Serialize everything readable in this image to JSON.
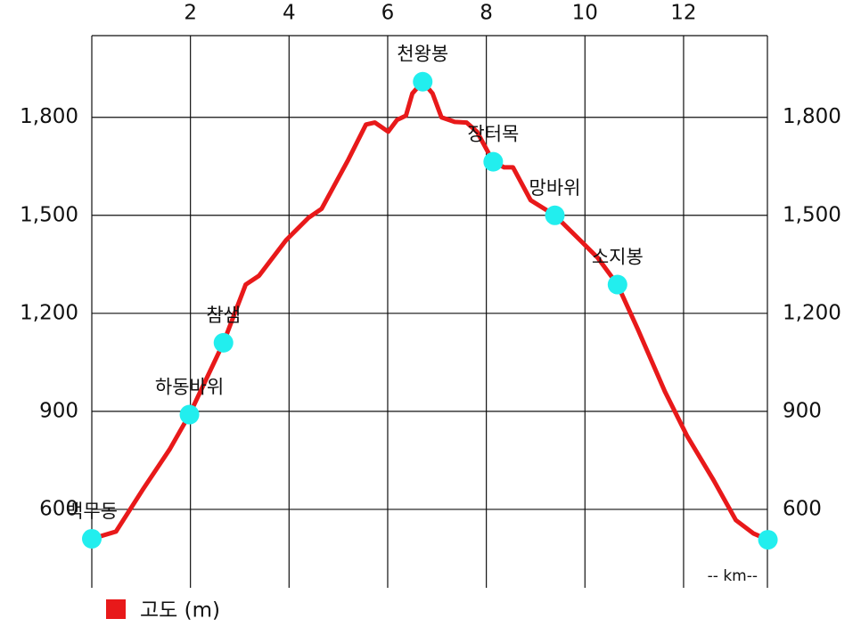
{
  "chart_data": {
    "type": "line",
    "x": [
      0,
      0.49,
      1.04,
      1.58,
      1.98,
      2.67,
      3.12,
      3.39,
      3.94,
      4.39,
      4.66,
      5.2,
      5.56,
      5.74,
      6.01,
      6.19,
      6.37,
      6.5,
      6.71,
      6.91,
      7.09,
      7.36,
      7.6,
      7.81,
      8.14,
      8.36,
      8.54,
      8.9,
      9.39,
      9.9,
      10.26,
      10.66,
      11.07,
      11.62,
      12.07,
      12.61,
      13.06,
      13.42,
      13.71
    ],
    "series": [
      {
        "name": "고도 (m)",
        "color": "#e8191a",
        "values": [
          510,
          532,
          662,
          784,
          890,
          1110,
          1288,
          1315,
          1424,
          1492,
          1520,
          1670,
          1778,
          1784,
          1756,
          1792,
          1805,
          1873,
          1909,
          1873,
          1800,
          1786,
          1784,
          1756,
          1664,
          1647,
          1647,
          1546,
          1500,
          1424,
          1370,
          1288,
          1152,
          961,
          825,
          689,
          567,
          526,
          507
        ]
      }
    ],
    "waypoints": {
      "color": "#22eeee",
      "x": [
        0,
        1.98,
        2.67,
        6.71,
        8.14,
        9.39,
        10.66,
        13.71
      ],
      "values": [
        510,
        890,
        1110,
        1909,
        1664,
        1500,
        1288,
        507
      ],
      "labels": [
        "백무동",
        "하동바위",
        "참샘",
        "천왕봉",
        "장터목",
        "망바위",
        "소지봉",
        null
      ]
    },
    "xlim": [
      0,
      13.7
    ],
    "xticks": [
      2,
      4,
      6,
      8,
      10,
      12
    ],
    "ylim": [
      360,
      2050
    ],
    "yticks": [
      {
        "value": 600,
        "label": "600"
      },
      {
        "value": 900,
        "label": "900"
      },
      {
        "value": 1200,
        "label": "1,200"
      },
      {
        "value": 1500,
        "label": "1,500"
      },
      {
        "value": 1800,
        "label": "1,800"
      }
    ],
    "x_label": "-- km--",
    "grid": true
  }
}
